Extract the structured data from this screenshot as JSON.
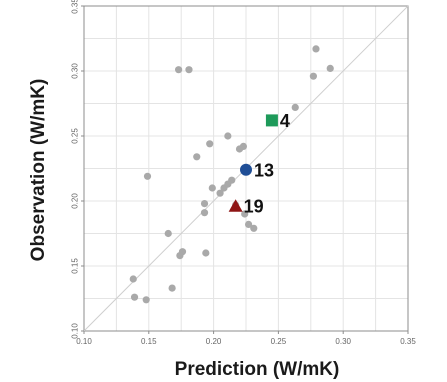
{
  "chart_data": {
    "type": "scatter",
    "title": "",
    "xlabel": "Prediction (W/mK)",
    "ylabel": "Observation (W/mK)",
    "xlim": [
      0.1,
      0.35
    ],
    "ylim": [
      0.1,
      0.35
    ],
    "x_ticks": [
      "0.10",
      "0.15",
      "0.20",
      "0.25",
      "0.30",
      "0.35"
    ],
    "y_ticks": [
      "0.10",
      "0.15",
      "0.20",
      "0.25",
      "0.30",
      "0.35"
    ],
    "grid": true,
    "reference_line": "y = x",
    "point_color": "#a9a9a9",
    "points": [
      {
        "x": 0.138,
        "y": 0.14
      },
      {
        "x": 0.139,
        "y": 0.126
      },
      {
        "x": 0.148,
        "y": 0.124
      },
      {
        "x": 0.149,
        "y": 0.219
      },
      {
        "x": 0.165,
        "y": 0.175
      },
      {
        "x": 0.168,
        "y": 0.133
      },
      {
        "x": 0.173,
        "y": 0.301
      },
      {
        "x": 0.174,
        "y": 0.158
      },
      {
        "x": 0.176,
        "y": 0.161
      },
      {
        "x": 0.181,
        "y": 0.301
      },
      {
        "x": 0.187,
        "y": 0.234
      },
      {
        "x": 0.193,
        "y": 0.198
      },
      {
        "x": 0.193,
        "y": 0.191
      },
      {
        "x": 0.194,
        "y": 0.16
      },
      {
        "x": 0.197,
        "y": 0.244
      },
      {
        "x": 0.199,
        "y": 0.21
      },
      {
        "x": 0.205,
        "y": 0.206
      },
      {
        "x": 0.208,
        "y": 0.21
      },
      {
        "x": 0.211,
        "y": 0.213
      },
      {
        "x": 0.211,
        "y": 0.25
      },
      {
        "x": 0.214,
        "y": 0.216
      },
      {
        "x": 0.217,
        "y": 0.197
      },
      {
        "x": 0.22,
        "y": 0.24
      },
      {
        "x": 0.223,
        "y": 0.242
      },
      {
        "x": 0.224,
        "y": 0.19
      },
      {
        "x": 0.227,
        "y": 0.182
      },
      {
        "x": 0.231,
        "y": 0.179
      },
      {
        "x": 0.263,
        "y": 0.272
      },
      {
        "x": 0.277,
        "y": 0.296
      },
      {
        "x": 0.279,
        "y": 0.317
      },
      {
        "x": 0.29,
        "y": 0.302
      }
    ],
    "highlights": [
      {
        "label": "4",
        "x": 0.245,
        "y": 0.262,
        "marker": "square",
        "color": "#1e9a5a"
      },
      {
        "label": "13",
        "x": 0.225,
        "y": 0.224,
        "marker": "circle",
        "color": "#1f4e96"
      },
      {
        "label": "19",
        "x": 0.217,
        "y": 0.196,
        "marker": "triangle",
        "color": "#8e1515"
      }
    ]
  }
}
